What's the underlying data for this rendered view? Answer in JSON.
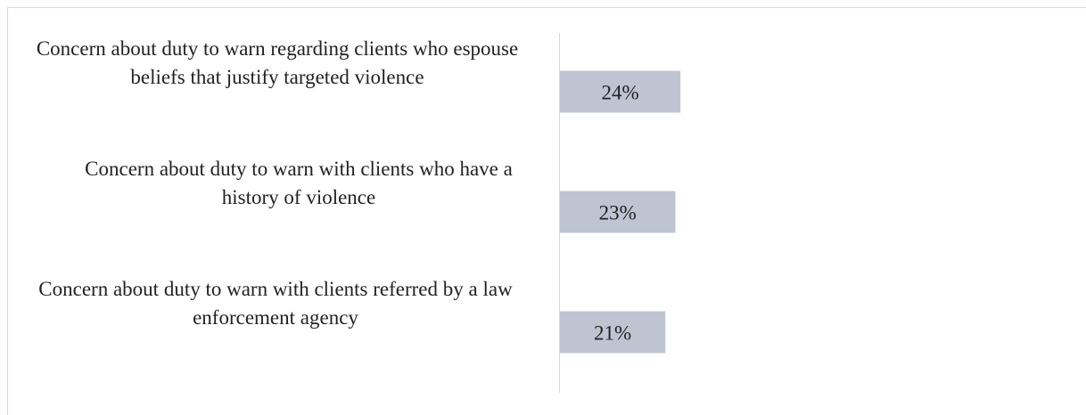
{
  "chart_data": {
    "type": "bar",
    "orientation": "horizontal",
    "categories": [
      "Concern about duty to warn regarding clients who espouse beliefs that justify targeted violence",
      "Concern about duty to warn with clients who have a history of violence",
      "Concern about duty to warn with clients referred by a law enforcement agency"
    ],
    "values": [
      24,
      23,
      21
    ],
    "value_labels": [
      "24%",
      "23%",
      "21%"
    ],
    "color": "#bec4d2"
  }
}
